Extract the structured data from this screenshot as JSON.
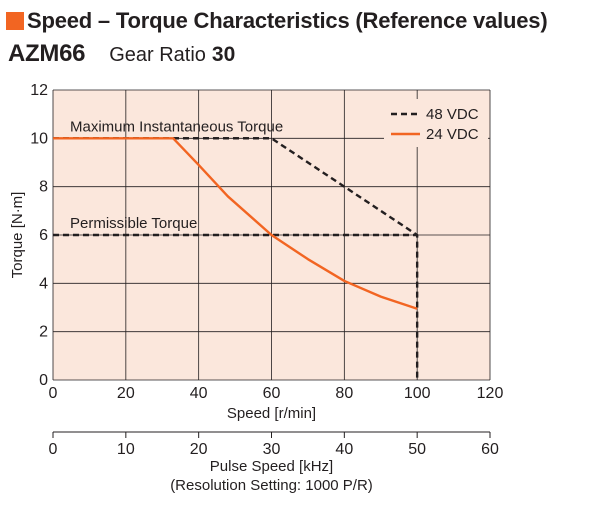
{
  "header": {
    "title": "Speed – Torque Characteristics (Reference values)",
    "model": "AZM66",
    "gear_ratio_label": "Gear Ratio",
    "gear_ratio_value": "30"
  },
  "colors": {
    "accent": "#f26522",
    "plot_background": "#fbe7dc",
    "grid": "#231f20",
    "series_48vdc": "#231f20",
    "series_24vdc": "#f26522"
  },
  "chart_data": {
    "type": "line",
    "xlabel": "Speed [r/min]",
    "ylabel": "Torque [N·m]",
    "xlim": [
      0,
      120
    ],
    "ylim": [
      0,
      12
    ],
    "x_ticks": [
      0,
      20,
      40,
      60,
      80,
      100,
      120
    ],
    "y_ticks": [
      0,
      2,
      4,
      6,
      8,
      10,
      12
    ],
    "grid": true,
    "legend_position": "top-right",
    "secondary_axis": {
      "label": "Pulse Speed [kHz]",
      "note": "(Resolution Setting: 1000 P/R)",
      "range": [
        0,
        60
      ],
      "ticks": [
        0,
        10,
        20,
        30,
        40,
        50,
        60
      ]
    },
    "annotations": [
      {
        "text": "Maximum Instantaneous Torque",
        "x": 0,
        "y": 10
      },
      {
        "text": "Permissible Torque",
        "x": 0,
        "y": 6
      }
    ],
    "reference_lines": [
      {
        "label": "Maximum Instantaneous Torque",
        "x": [
          0,
          60
        ],
        "y": [
          10,
          10
        ]
      },
      {
        "label": "Permissible Torque",
        "x": [
          0,
          100
        ],
        "y": [
          6,
          6
        ]
      }
    ],
    "series": [
      {
        "name": "48 VDC",
        "style": "dashed",
        "x": [
          0,
          60,
          100,
          100
        ],
        "y": [
          10,
          10,
          6,
          0
        ]
      },
      {
        "name": "24 VDC",
        "style": "solid",
        "x": [
          0,
          33,
          40,
          48,
          60,
          70,
          80,
          90,
          100
        ],
        "y": [
          10,
          10,
          8.9,
          7.6,
          6,
          5,
          4.1,
          3.45,
          2.95
        ]
      }
    ]
  }
}
